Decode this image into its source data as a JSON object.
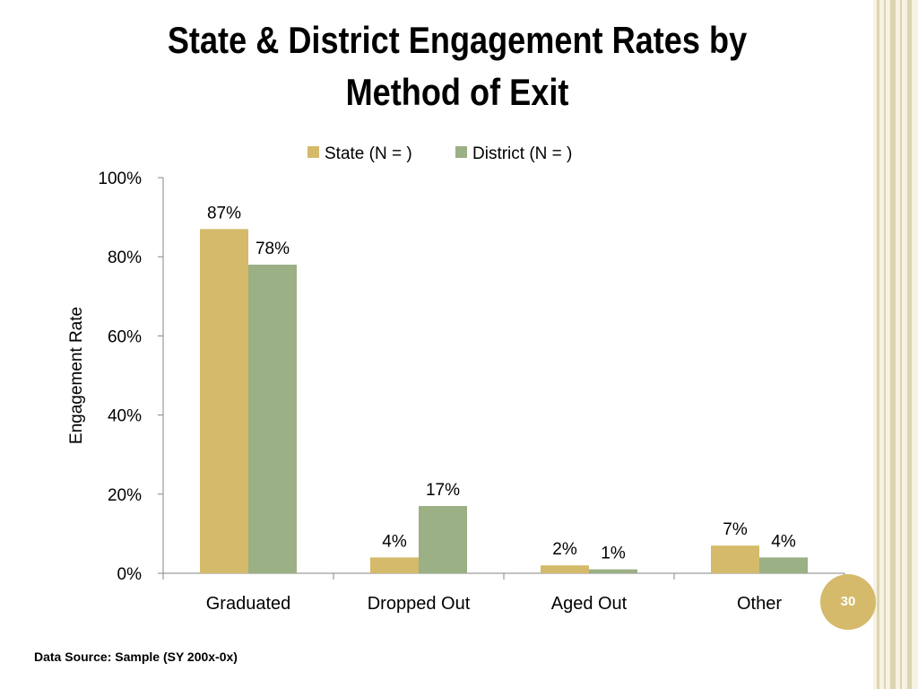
{
  "slide": {
    "title": "State & District Engagement Rates by Method of Exit",
    "page_number": "30",
    "data_source": "Data Source: Sample (SY 200x-0x)"
  },
  "colors": {
    "state": "#d4ba6a",
    "district": "#9bb085",
    "accent": "#d4ba6a"
  },
  "chart_data": {
    "type": "bar",
    "title": "",
    "categories": [
      "Graduated",
      "Dropped Out",
      "Aged Out",
      "Other"
    ],
    "series": [
      {
        "name": "State (N = )",
        "values": [
          87,
          4,
          2,
          7
        ],
        "labels": [
          "87%",
          "4%",
          "2%",
          "7%"
        ]
      },
      {
        "name": "District (N = )",
        "values": [
          78,
          17,
          1,
          4
        ],
        "labels": [
          "78%",
          "17%",
          "1%",
          "4%"
        ]
      }
    ],
    "xlabel": "",
    "ylabel": "Engagement Rate",
    "ylim": [
      0,
      100
    ],
    "yticks": [
      "0%",
      "20%",
      "40%",
      "60%",
      "80%",
      "100%"
    ],
    "grid": false,
    "legend": "top-center"
  }
}
